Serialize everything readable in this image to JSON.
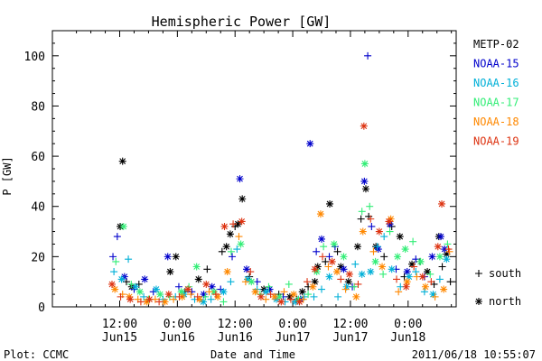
{
  "chart_data": {
    "type": "scatter",
    "title": "Hemispheric Power [GW]",
    "xlabel": "Date and Time",
    "ylabel": "P [GW]",
    "ylim": [
      0,
      110
    ],
    "xlim": [
      -2,
      82
    ],
    "x_unit": "hours from 2011-06-15 00:00",
    "yticks": [
      0,
      20,
      40,
      60,
      80,
      100
    ],
    "xticks": [
      {
        "x": 12,
        "top": "12:00",
        "bottom": "Jun15"
      },
      {
        "x": 24,
        "top": "0:00",
        "bottom": "Jun16"
      },
      {
        "x": 36,
        "top": "12:00",
        "bottom": "Jun16"
      },
      {
        "x": 48,
        "top": "0:00",
        "bottom": "Jun17"
      },
      {
        "x": 60,
        "top": "12:00",
        "bottom": "Jun17"
      },
      {
        "x": 72,
        "top": "0:00",
        "bottom": "Jun18"
      }
    ],
    "grid": false,
    "legend_position": "right",
    "marker_legend": [
      {
        "symbol": "+",
        "label": "south"
      },
      {
        "symbol": "*",
        "label": "north"
      }
    ],
    "series": [
      {
        "name": "METP-02",
        "color": "#000000",
        "points": [
          [
            12.1,
            32,
            "n"
          ],
          [
            12.6,
            58,
            "n"
          ],
          [
            13.4,
            10,
            "s"
          ],
          [
            14.5,
            8,
            "n"
          ],
          [
            16.0,
            9,
            "s"
          ],
          [
            22.5,
            14,
            "n"
          ],
          [
            23.7,
            20,
            "n"
          ],
          [
            25.6,
            6,
            "s"
          ],
          [
            28.4,
            11,
            "n"
          ],
          [
            30.2,
            15,
            "s"
          ],
          [
            33.3,
            22,
            "s"
          ],
          [
            34.2,
            24,
            "n"
          ],
          [
            35.0,
            29,
            "n"
          ],
          [
            36.0,
            32,
            "s"
          ],
          [
            36.6,
            33,
            "n"
          ],
          [
            37.5,
            43,
            "n"
          ],
          [
            39.0,
            12,
            "s"
          ],
          [
            42.0,
            7,
            "n"
          ],
          [
            45.1,
            5,
            "s"
          ],
          [
            47.4,
            4,
            "n"
          ],
          [
            48.8,
            3,
            "s"
          ],
          [
            50.0,
            6,
            "n"
          ],
          [
            51.2,
            8,
            "s"
          ],
          [
            52.6,
            10,
            "n"
          ],
          [
            53.2,
            16,
            "n"
          ],
          [
            54.8,
            18,
            "s"
          ],
          [
            55.7,
            41,
            "n"
          ],
          [
            57.3,
            22,
            "s"
          ],
          [
            58.0,
            16,
            "n"
          ],
          [
            59.6,
            10,
            "n"
          ],
          [
            61.5,
            24,
            "n"
          ],
          [
            62.2,
            35,
            "s"
          ],
          [
            63.2,
            47,
            "n"
          ],
          [
            63.8,
            36,
            "s"
          ],
          [
            65.3,
            24,
            "n"
          ],
          [
            67.0,
            20,
            "s"
          ],
          [
            68.6,
            32,
            "s"
          ],
          [
            70.3,
            28,
            "n"
          ],
          [
            71.2,
            12,
            "s"
          ],
          [
            72.8,
            17,
            "n"
          ],
          [
            74.5,
            18,
            "s"
          ],
          [
            76.0,
            14,
            "n"
          ],
          [
            77.4,
            9,
            "s"
          ],
          [
            78.4,
            28,
            "n"
          ],
          [
            79.1,
            16,
            "s"
          ],
          [
            80.0,
            21,
            "n"
          ],
          [
            80.8,
            10,
            "s"
          ]
        ]
      },
      {
        "name": "NOAA-15",
        "color": "#0000cc",
        "points": [
          [
            10.6,
            20,
            "s"
          ],
          [
            11.5,
            28,
            "s"
          ],
          [
            13.0,
            12,
            "n"
          ],
          [
            15.0,
            7,
            "s"
          ],
          [
            17.2,
            11,
            "n"
          ],
          [
            19.0,
            6,
            "s"
          ],
          [
            22.0,
            20,
            "n"
          ],
          [
            24.3,
            8,
            "s"
          ],
          [
            27.0,
            6,
            "s"
          ],
          [
            29.5,
            5,
            "n"
          ],
          [
            31.2,
            8,
            "n"
          ],
          [
            33.0,
            7,
            "s"
          ],
          [
            35.4,
            20,
            "s"
          ],
          [
            37.0,
            51,
            "n"
          ],
          [
            38.4,
            15,
            "n"
          ],
          [
            40.6,
            10,
            "s"
          ],
          [
            43.2,
            7,
            "n"
          ],
          [
            46.0,
            4,
            "s"
          ],
          [
            49.6,
            3,
            "n"
          ],
          [
            51.6,
            65,
            "n"
          ],
          [
            52.9,
            22,
            "s"
          ],
          [
            54.0,
            27,
            "n"
          ],
          [
            55.6,
            20,
            "s"
          ],
          [
            56.8,
            24,
            "s"
          ],
          [
            58.6,
            15,
            "n"
          ],
          [
            60.4,
            8,
            "s"
          ],
          [
            62.9,
            50,
            "n"
          ],
          [
            63.6,
            100,
            "s"
          ],
          [
            64.4,
            32,
            "s"
          ],
          [
            65.8,
            23,
            "n"
          ],
          [
            68.2,
            33,
            "n"
          ],
          [
            69.5,
            15,
            "s"
          ],
          [
            71.8,
            14,
            "n"
          ],
          [
            73.6,
            19,
            "s"
          ],
          [
            75.4,
            12,
            "s"
          ],
          [
            77.0,
            20,
            "n"
          ],
          [
            78.8,
            28,
            "n"
          ],
          [
            79.6,
            23,
            "n"
          ]
        ]
      },
      {
        "name": "NOAA-16",
        "color": "#00b0d8",
        "points": [
          [
            10.8,
            14,
            "s"
          ],
          [
            12.4,
            11,
            "n"
          ],
          [
            13.8,
            19,
            "s"
          ],
          [
            15.3,
            8,
            "n"
          ],
          [
            17.0,
            4,
            "s"
          ],
          [
            19.6,
            7,
            "n"
          ],
          [
            21.0,
            3,
            "s"
          ],
          [
            23.6,
            4,
            "s"
          ],
          [
            25.4,
            5,
            "n"
          ],
          [
            27.6,
            3,
            "s"
          ],
          [
            29.4,
            2,
            "n"
          ],
          [
            31.0,
            3,
            "s"
          ],
          [
            33.6,
            6,
            "n"
          ],
          [
            35.1,
            10,
            "s"
          ],
          [
            36.4,
            23,
            "s"
          ],
          [
            38.6,
            11,
            "n"
          ],
          [
            40.6,
            7,
            "s"
          ],
          [
            42.5,
            6,
            "n"
          ],
          [
            44.6,
            3,
            "n"
          ],
          [
            46.4,
            2,
            "s"
          ],
          [
            48.6,
            2,
            "n"
          ],
          [
            50.4,
            4,
            "s"
          ],
          [
            52.4,
            4,
            "s"
          ],
          [
            54.0,
            7,
            "s"
          ],
          [
            55.6,
            12,
            "n"
          ],
          [
            57.4,
            4,
            "s"
          ],
          [
            59.2,
            8,
            "n"
          ],
          [
            61.0,
            17,
            "s"
          ],
          [
            62.4,
            13,
            "n"
          ],
          [
            64.2,
            14,
            "n"
          ],
          [
            65.6,
            24,
            "s"
          ],
          [
            67.0,
            28,
            "s"
          ],
          [
            68.6,
            15,
            "n"
          ],
          [
            70.4,
            8,
            "s"
          ],
          [
            72.2,
            12,
            "n"
          ],
          [
            73.6,
            14,
            "s"
          ],
          [
            75.4,
            6,
            "s"
          ],
          [
            77.2,
            5,
            "n"
          ],
          [
            78.6,
            11,
            "s"
          ],
          [
            80.0,
            19,
            "n"
          ]
        ]
      },
      {
        "name": "NOAA-17",
        "color": "#33ee77",
        "points": [
          [
            11.2,
            18,
            "s"
          ],
          [
            12.8,
            32,
            "n"
          ],
          [
            14.4,
            9,
            "s"
          ],
          [
            16.2,
            6,
            "n"
          ],
          [
            18.0,
            3,
            "s"
          ],
          [
            20.4,
            5,
            "n"
          ],
          [
            22.4,
            4,
            "s"
          ],
          [
            24.8,
            6,
            "n"
          ],
          [
            26.4,
            8,
            "s"
          ],
          [
            28.0,
            16,
            "n"
          ],
          [
            29.8,
            4,
            "s"
          ],
          [
            31.6,
            6,
            "n"
          ],
          [
            33.6,
            2,
            "s"
          ],
          [
            35.2,
            22,
            "s"
          ],
          [
            37.2,
            25,
            "n"
          ],
          [
            39.4,
            10,
            "n"
          ],
          [
            41.2,
            5,
            "s"
          ],
          [
            43.0,
            8,
            "s"
          ],
          [
            45.2,
            4,
            "n"
          ],
          [
            47.2,
            9,
            "s"
          ],
          [
            49.2,
            3,
            "n"
          ],
          [
            51.2,
            5,
            "s"
          ],
          [
            53.0,
            14,
            "n"
          ],
          [
            54.4,
            24,
            "s"
          ],
          [
            56.6,
            25,
            "n"
          ],
          [
            58.6,
            20,
            "n"
          ],
          [
            60.8,
            8,
            "s"
          ],
          [
            62.4,
            38,
            "s"
          ],
          [
            63.0,
            57,
            "n"
          ],
          [
            64.0,
            40,
            "s"
          ],
          [
            65.2,
            18,
            "n"
          ],
          [
            66.8,
            13,
            "s"
          ],
          [
            68.2,
            30,
            "s"
          ],
          [
            69.8,
            20,
            "n"
          ],
          [
            71.4,
            23,
            "n"
          ],
          [
            73.0,
            26,
            "s"
          ],
          [
            74.6,
            18,
            "n"
          ],
          [
            76.6,
            13,
            "s"
          ],
          [
            78.6,
            20,
            "n"
          ],
          [
            80.2,
            25,
            "s"
          ]
        ]
      },
      {
        "name": "NOAA-18",
        "color": "#ff8800",
        "points": [
          [
            11.0,
            7,
            "n"
          ],
          [
            12.6,
            5,
            "s"
          ],
          [
            14.0,
            4,
            "n"
          ],
          [
            15.8,
            3,
            "s"
          ],
          [
            17.6,
            2,
            "n"
          ],
          [
            19.4,
            3,
            "s"
          ],
          [
            21.4,
            2,
            "n"
          ],
          [
            23.2,
            3,
            "s"
          ],
          [
            25.0,
            4,
            "n"
          ],
          [
            26.8,
            5,
            "s"
          ],
          [
            28.6,
            3,
            "n"
          ],
          [
            30.6,
            6,
            "s"
          ],
          [
            32.4,
            4,
            "n"
          ],
          [
            34.4,
            14,
            "n"
          ],
          [
            36.8,
            28,
            "s"
          ],
          [
            38.2,
            10,
            "s"
          ],
          [
            40.2,
            6,
            "n"
          ],
          [
            42.4,
            3,
            "s"
          ],
          [
            44.2,
            4,
            "n"
          ],
          [
            46.2,
            6,
            "s"
          ],
          [
            48.2,
            5,
            "n"
          ],
          [
            50.2,
            3,
            "s"
          ],
          [
            52.2,
            8,
            "n"
          ],
          [
            53.8,
            37,
            "n"
          ],
          [
            55.4,
            16,
            "s"
          ],
          [
            57.2,
            14,
            "n"
          ],
          [
            59.0,
            7,
            "s"
          ],
          [
            61.2,
            4,
            "n"
          ],
          [
            62.6,
            30,
            "n"
          ],
          [
            64.8,
            22,
            "s"
          ],
          [
            66.6,
            16,
            "n"
          ],
          [
            68.4,
            35,
            "n"
          ],
          [
            70.0,
            6,
            "s"
          ],
          [
            71.8,
            10,
            "n"
          ],
          [
            73.8,
            12,
            "s"
          ],
          [
            75.6,
            8,
            "n"
          ],
          [
            77.6,
            4,
            "s"
          ],
          [
            79.4,
            7,
            "n"
          ],
          [
            80.6,
            22,
            "s"
          ]
        ]
      },
      {
        "name": "NOAA-19",
        "color": "#dd3311",
        "points": [
          [
            10.4,
            9,
            "n"
          ],
          [
            12.2,
            4,
            "s"
          ],
          [
            14.2,
            3,
            "n"
          ],
          [
            16.4,
            2,
            "s"
          ],
          [
            18.2,
            3,
            "n"
          ],
          [
            20.2,
            2,
            "s"
          ],
          [
            22.2,
            5,
            "n"
          ],
          [
            24.4,
            4,
            "s"
          ],
          [
            26.2,
            7,
            "n"
          ],
          [
            28.2,
            4,
            "s"
          ],
          [
            30.0,
            9,
            "n"
          ],
          [
            32.0,
            5,
            "s"
          ],
          [
            33.8,
            32,
            "n"
          ],
          [
            35.6,
            33,
            "s"
          ],
          [
            37.4,
            34,
            "n"
          ],
          [
            39.2,
            14,
            "s"
          ],
          [
            41.4,
            4,
            "n"
          ],
          [
            43.4,
            5,
            "s"
          ],
          [
            45.6,
            2,
            "n"
          ],
          [
            47.6,
            3,
            "s"
          ],
          [
            49.4,
            2,
            "n"
          ],
          [
            51.0,
            10,
            "s"
          ],
          [
            52.6,
            15,
            "n"
          ],
          [
            54.2,
            20,
            "s"
          ],
          [
            56.2,
            18,
            "n"
          ],
          [
            58.0,
            11,
            "s"
          ],
          [
            59.8,
            13,
            "n"
          ],
          [
            61.6,
            9,
            "s"
          ],
          [
            62.8,
            72,
            "n"
          ],
          [
            64.2,
            35,
            "s"
          ],
          [
            66.0,
            30,
            "n"
          ],
          [
            68.0,
            34,
            "n"
          ],
          [
            69.6,
            11,
            "s"
          ],
          [
            71.6,
            8,
            "n"
          ],
          [
            73.2,
            16,
            "s"
          ],
          [
            75.0,
            12,
            "n"
          ],
          [
            76.8,
            10,
            "s"
          ],
          [
            78.2,
            24,
            "n"
          ],
          [
            79.0,
            41,
            "n"
          ],
          [
            80.4,
            23,
            "s"
          ]
        ]
      }
    ]
  },
  "footer": {
    "left": "Plot: CCMC",
    "right": "2011/06/18 10:55:07"
  }
}
